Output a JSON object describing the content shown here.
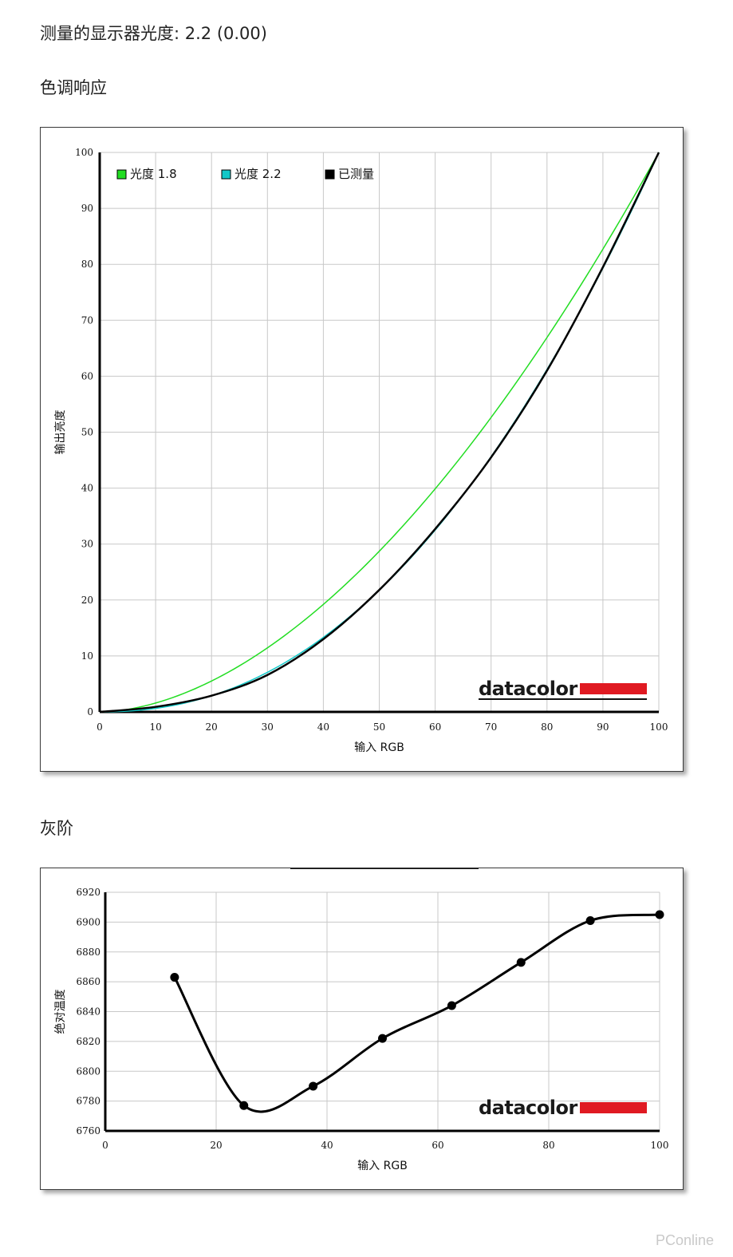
{
  "header": {
    "measured_gamma": "测量的显示器光度: 2.2 (0.00)",
    "tone_response_title": "色调响应",
    "grayscale_title": "灰阶"
  },
  "watermark": "PConline",
  "chart_data": [
    {
      "type": "line",
      "xlabel": "输入 RGB",
      "ylabel": "输出亮度",
      "xlim": [
        0,
        100
      ],
      "ylim": [
        0,
        100
      ],
      "xticks": [
        "0",
        "10",
        "20",
        "30",
        "40",
        "50",
        "60",
        "70",
        "80",
        "90",
        "100"
      ],
      "yticks": [
        "0",
        "10",
        "20",
        "30",
        "40",
        "50",
        "60",
        "70",
        "80",
        "90",
        "100"
      ],
      "grid": true,
      "legend_position": "top-left",
      "brand": "datacolor",
      "series": [
        {
          "name": "光度 1.8",
          "color": "#22dd22",
          "gamma": 1.8
        },
        {
          "name": "光度 2.2",
          "color": "#11c8c8",
          "gamma": 2.2
        },
        {
          "name": "已测量",
          "color": "#000000",
          "x": [
            0,
            10,
            20,
            30,
            40,
            50,
            60,
            70,
            80,
            90,
            100
          ],
          "y": [
            0,
            0.9,
            2.9,
            6.6,
            13.0,
            21.8,
            32.7,
            45.5,
            61.0,
            79.5,
            100
          ]
        }
      ]
    },
    {
      "type": "line",
      "xlabel": "输入 RGB",
      "ylabel": "绝对温度",
      "xlim": [
        0,
        100
      ],
      "ylim": [
        6760,
        6920
      ],
      "xticks": [
        "0",
        "20",
        "40",
        "60",
        "80",
        "100"
      ],
      "yticks": [
        "6760",
        "6780",
        "6800",
        "6820",
        "6840",
        "6860",
        "6880",
        "6900",
        "6920"
      ],
      "grid": true,
      "brand": "datacolor",
      "series": [
        {
          "color": "#000000",
          "x": [
            12.5,
            25,
            37.5,
            50,
            62.5,
            75,
            87.5,
            100
          ],
          "y": [
            6863,
            6777,
            6790,
            6822,
            6844,
            6873,
            6901,
            6905
          ]
        }
      ]
    }
  ]
}
